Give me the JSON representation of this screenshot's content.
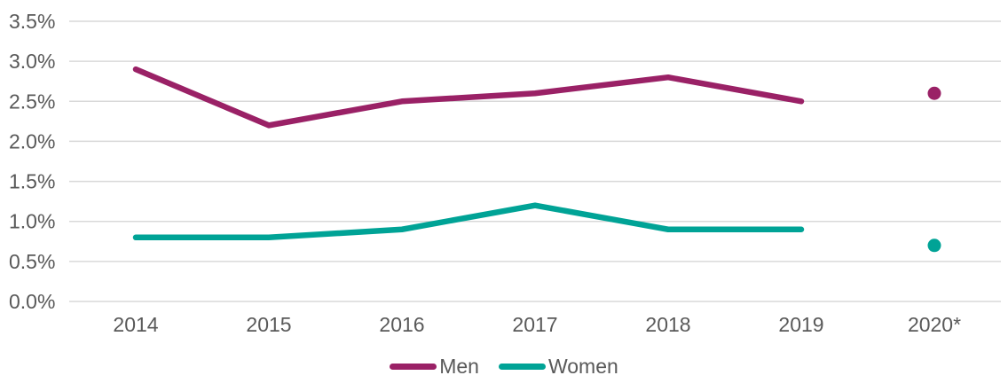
{
  "chart_data": {
    "type": "line",
    "title": "",
    "xlabel": "",
    "ylabel": "",
    "categories": [
      "2014",
      "2015",
      "2016",
      "2017",
      "2018",
      "2019",
      "2020*"
    ],
    "series": [
      {
        "name": "Men",
        "color": "#9A2166",
        "values": [
          2.9,
          2.2,
          2.5,
          2.6,
          2.8,
          2.5,
          2.6
        ],
        "last_point_isolated": true
      },
      {
        "name": "Women",
        "color": "#00A396",
        "values": [
          0.8,
          0.8,
          0.9,
          1.2,
          0.9,
          0.9,
          0.7
        ],
        "last_point_isolated": true
      }
    ],
    "ylim": [
      0,
      3.5
    ],
    "ytick_step": 0.5,
    "yticks": [
      "0.0%",
      "0.5%",
      "1.0%",
      "1.5%",
      "2.0%",
      "2.5%",
      "3.0%",
      "3.5%"
    ],
    "grid": true,
    "legend_position": "bottom",
    "colors": {
      "gridline": "#D9D9D9",
      "axis_text": "#595959"
    }
  }
}
